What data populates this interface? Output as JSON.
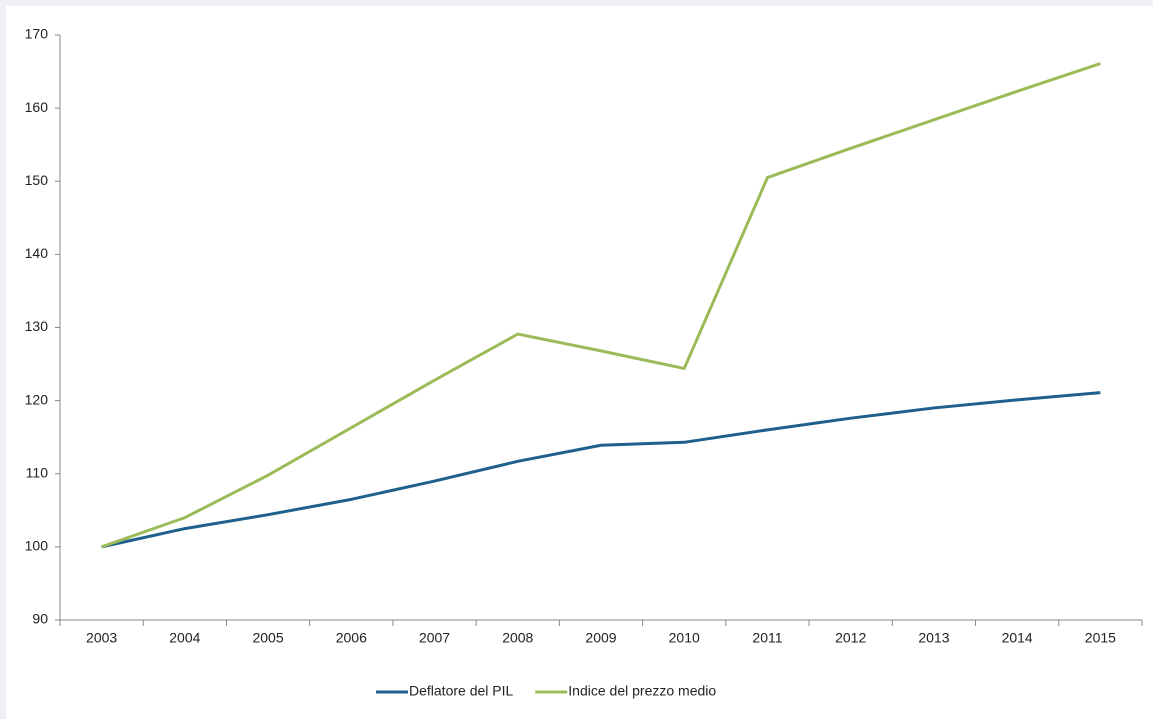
{
  "chart_data": {
    "type": "line",
    "categories": [
      "2003",
      "2004",
      "2005",
      "2006",
      "2007",
      "2008",
      "2009",
      "2010",
      "2011",
      "2012",
      "2013",
      "2014",
      "2015"
    ],
    "series": [
      {
        "name": "Deflatore del PIL",
        "color": "#1f5f8b",
        "values": [
          100,
          102.5,
          104.4,
          106.5,
          109,
          111.7,
          113.9,
          114.3,
          116,
          117.6,
          119,
          120.1,
          121.1
        ]
      },
      {
        "name": "Indice del prezzo medio",
        "color": "#9bbb59",
        "values": [
          100,
          104,
          109.8,
          116.3,
          122.8,
          129.1,
          126.8,
          124.4,
          150.5,
          154.5,
          158.4,
          162.3,
          166.1
        ]
      }
    ],
    "ylim": [
      90,
      170
    ],
    "yticks": [
      90,
      100,
      110,
      120,
      130,
      140,
      150,
      160,
      170
    ],
    "grid": false,
    "legend": "bottom"
  }
}
